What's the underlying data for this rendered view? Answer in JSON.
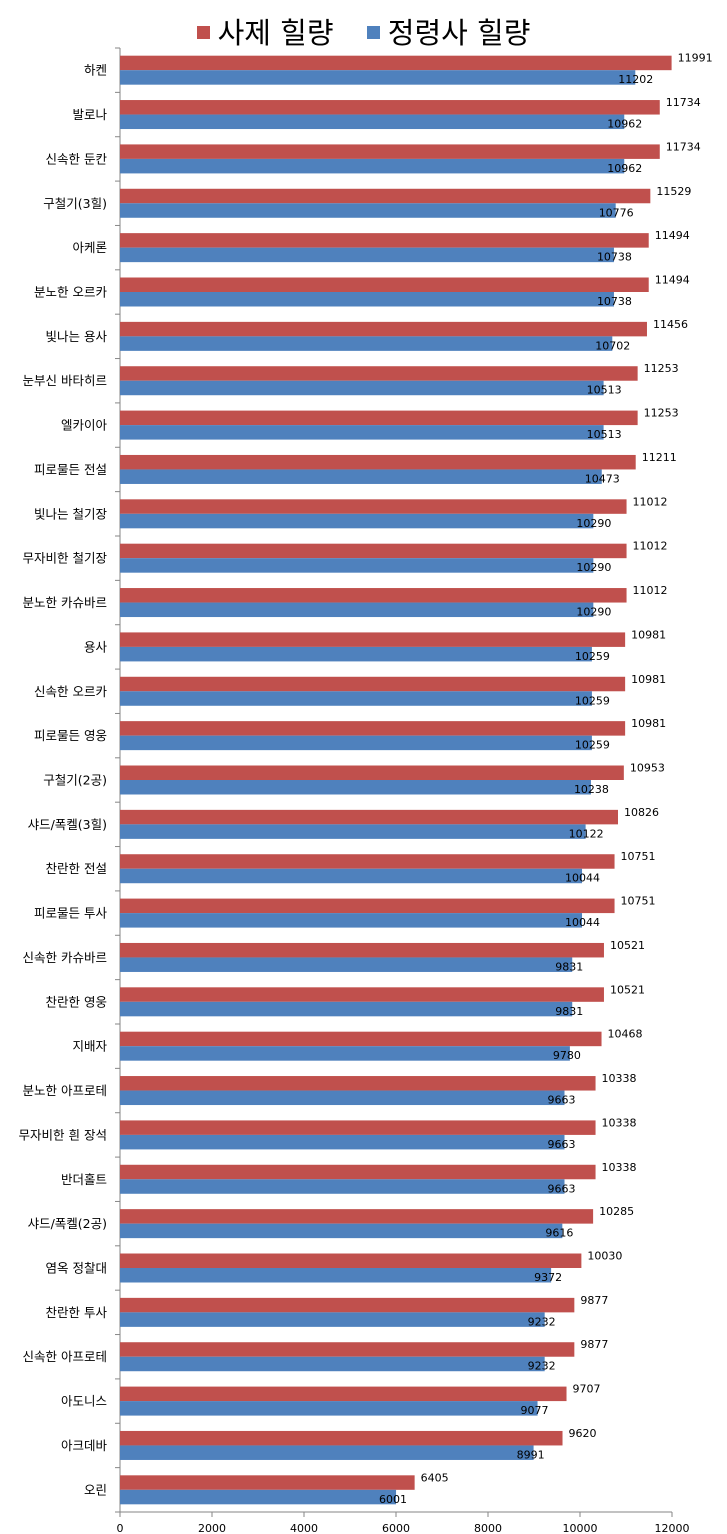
{
  "chart_data": {
    "type": "bar",
    "orientation": "horizontal",
    "title": "",
    "xlabel": "",
    "ylabel": "",
    "xlim": [
      0,
      12000
    ],
    "x_ticks": [
      "0",
      "2000",
      "4000",
      "6000",
      "8000",
      "10000",
      "12000"
    ],
    "grid": false,
    "legend_position": "top",
    "categories": [
      "하켄",
      "발로나",
      "신속한 둔칸",
      "구철기(3힐)",
      "아케론",
      "분노한 오르카",
      "빛나는 용사",
      "눈부신 바타히르",
      "엘카이아",
      "피로물든 전설",
      "빛나는 철기장",
      "무자비한 철기장",
      "분노한 카슈바르",
      "용사",
      "신속한 오르카",
      "피로물든 영웅",
      "구철기(2공)",
      "샤드/폭켈(3힐)",
      "찬란한 전설",
      "피로물든 투사",
      "신속한 카슈바르",
      "찬란한 영웅",
      "지배자",
      "분노한 아프로테",
      "무자비한 흰 장석",
      "반더홀트",
      "샤드/폭켈(2공)",
      "염옥 정찰대",
      "찬란한 투사",
      "신속한 아프로테",
      "아도니스",
      "아크데바",
      "오린"
    ],
    "series": [
      {
        "name": "사제 힐량",
        "color": "#c0504d",
        "values": [
          11991,
          11734,
          11734,
          11529,
          11494,
          11494,
          11456,
          11253,
          11253,
          11211,
          11012,
          11012,
          11012,
          10981,
          10981,
          10981,
          10953,
          10826,
          10751,
          10751,
          10521,
          10521,
          10468,
          10338,
          10338,
          10338,
          10285,
          10030,
          9877,
          9877,
          9707,
          9620,
          6405
        ]
      },
      {
        "name": "정령사 힐량",
        "color": "#4f81bd",
        "values": [
          11202,
          10962,
          10962,
          10776,
          10738,
          10738,
          10702,
          10513,
          10513,
          10473,
          10290,
          10290,
          10290,
          10259,
          10259,
          10259,
          10238,
          10122,
          10044,
          10044,
          9831,
          9831,
          9780,
          9663,
          9663,
          9663,
          9616,
          9372,
          9232,
          9232,
          9077,
          8991,
          6001
        ]
      }
    ]
  }
}
